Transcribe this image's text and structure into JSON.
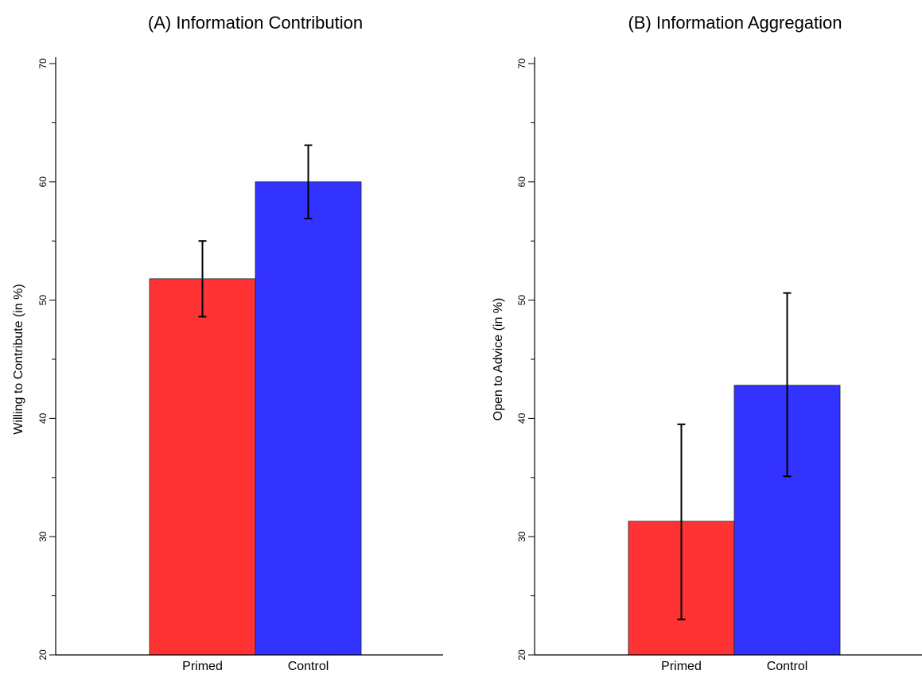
{
  "chart_data": [
    {
      "type": "bar",
      "title": "(A) Information Contribution",
      "ylabel": "Willing to Contribute (in %)",
      "xlabel": "",
      "ylim": [
        20,
        70
      ],
      "yticks": [
        20,
        30,
        40,
        50,
        60,
        70
      ],
      "grid": false,
      "categories": [
        "Primed",
        "Control"
      ],
      "values": [
        51.8,
        60.0
      ],
      "error_low": [
        48.6,
        56.9
      ],
      "error_high": [
        55.0,
        63.1
      ],
      "colors": [
        "#ff3333",
        "#3333ff"
      ]
    },
    {
      "type": "bar",
      "title": "(B) Information Aggregation",
      "ylabel": "Open to Advice (in %)",
      "xlabel": "",
      "ylim": [
        20,
        70
      ],
      "yticks": [
        20,
        30,
        40,
        50,
        60,
        70
      ],
      "grid": false,
      "categories": [
        "Primed",
        "Control"
      ],
      "values": [
        31.3,
        42.8
      ],
      "error_low": [
        23.0,
        35.1
      ],
      "error_high": [
        39.5,
        50.6
      ],
      "colors": [
        "#ff3333",
        "#3333ff"
      ]
    }
  ]
}
